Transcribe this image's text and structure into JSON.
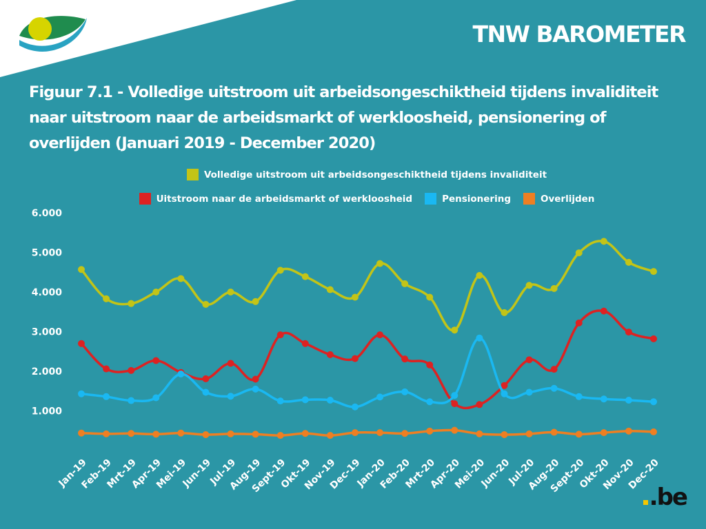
{
  "header": {
    "brand": "TNW BAROMETER",
    "logo_icon": "belgian-inami-logo-icon",
    "footer_logo": ".be"
  },
  "colors": {
    "background": "#2b96a6",
    "series_total": "#c3c417",
    "series_labor": "#dd2222",
    "series_pension": "#1ab8f2",
    "series_death": "#ee7f22"
  },
  "chart_data": {
    "type": "line",
    "title": "Figuur 7.1 - Volledige uitstroom uit arbeidsongeschiktheid tijdens invaliditeit naar uitstroom naar de arbeidsmarkt of werkloosheid, pensionering of overlijden (Januari 2019 - December 2020)",
    "categories": [
      "Jan-19",
      "Feb-19",
      "Mrt-19",
      "Apr-19",
      "Mei-19",
      "Jun-19",
      "Jul-19",
      "Aug-19",
      "Sept-19",
      "Okt-19",
      "Nov-19",
      "Dec-19",
      "Jan-20",
      "Feb-20",
      "Mrt-20",
      "Apr-20",
      "Mei-20",
      "Jun-20",
      "Jul-20",
      "Aug-20",
      "Sept-20",
      "Okt-20",
      "Nov-20",
      "Dec-20"
    ],
    "y_ticks": [
      "1.000",
      "2.000",
      "3.000",
      "4.000",
      "5.000",
      "6.000"
    ],
    "y_tick_values": [
      1000,
      2000,
      3000,
      4000,
      5000,
      6000
    ],
    "ylim": [
      0,
      6000
    ],
    "grid": false,
    "legend_position": "top",
    "series": [
      {
        "name": "Volledige uitstroom uit arbeidsongeschiktheid tijdens invaliditeit",
        "color": "#c3c417",
        "values": [
          4570,
          3830,
          3710,
          4000,
          4340,
          3690,
          4000,
          3760,
          4550,
          4390,
          4060,
          3870,
          4720,
          4210,
          3870,
          3040,
          4420,
          3480,
          4170,
          4090,
          4990,
          5280,
          4750,
          4520
        ]
      },
      {
        "name": "Uitstroom naar de arbeidsmarkt of werkloosheid",
        "color": "#dd2222",
        "values": [
          2700,
          2060,
          2020,
          2270,
          1970,
          1810,
          2200,
          1800,
          2920,
          2700,
          2420,
          2320,
          2920,
          2310,
          2160,
          1180,
          1160,
          1640,
          2290,
          2050,
          3220,
          3520,
          2990,
          2820
        ]
      },
      {
        "name": "Pensionering",
        "color": "#1ab8f2",
        "values": [
          1430,
          1360,
          1260,
          1330,
          1930,
          1470,
          1370,
          1550,
          1250,
          1280,
          1270,
          1100,
          1350,
          1480,
          1230,
          1390,
          2840,
          1430,
          1470,
          1570,
          1360,
          1300,
          1270,
          1230
        ]
      },
      {
        "name": "Overlijden",
        "color": "#ee7f22",
        "values": [
          440,
          420,
          430,
          410,
          440,
          400,
          420,
          410,
          380,
          430,
          380,
          450,
          450,
          430,
          490,
          510,
          420,
          400,
          420,
          460,
          410,
          450,
          490,
          470
        ]
      }
    ]
  }
}
